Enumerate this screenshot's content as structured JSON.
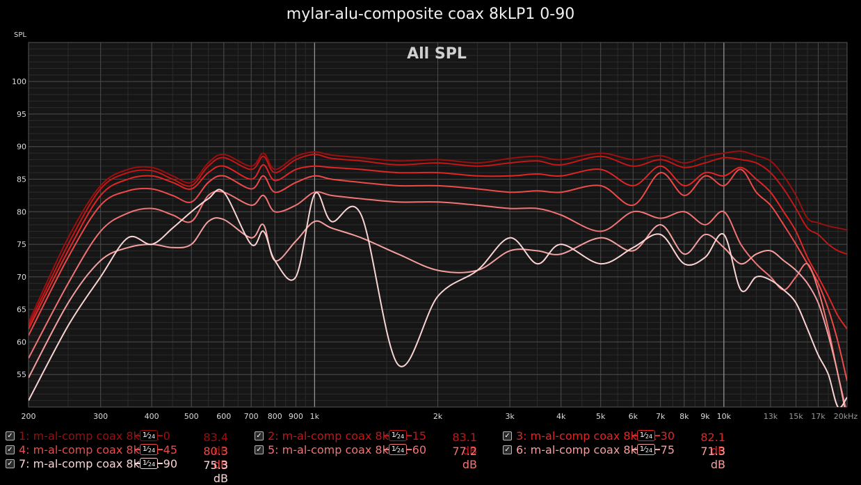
{
  "header": {
    "title": "mylar-alu-composite coax 8kLP1 0-90"
  },
  "chart_data": {
    "type": "line",
    "title": "All SPL",
    "xlabel": "",
    "ylabel": "SPL",
    "x_scale": "log",
    "xlim": [
      200,
      20000
    ],
    "ylim": [
      50,
      106
    ],
    "grid": true,
    "x_tick_labels": [
      {
        "v": 200,
        "t": "200"
      },
      {
        "v": 300,
        "t": "300"
      },
      {
        "v": 400,
        "t": "400"
      },
      {
        "v": 500,
        "t": "500"
      },
      {
        "v": 600,
        "t": "600"
      },
      {
        "v": 700,
        "t": "700"
      },
      {
        "v": 800,
        "t": "800"
      },
      {
        "v": 900,
        "t": "900"
      },
      {
        "v": 1000,
        "t": "1k"
      },
      {
        "v": 2000,
        "t": "2k"
      },
      {
        "v": 3000,
        "t": "3k"
      },
      {
        "v": 4000,
        "t": "4k"
      },
      {
        "v": 5000,
        "t": "5k"
      },
      {
        "v": 6000,
        "t": "6k"
      },
      {
        "v": 7000,
        "t": "7k"
      },
      {
        "v": 8000,
        "t": "8k"
      },
      {
        "v": 9000,
        "t": "9k"
      },
      {
        "v": 10000,
        "t": "10k"
      },
      {
        "v": 13000,
        "t": "13k"
      },
      {
        "v": 15000,
        "t": "15k"
      },
      {
        "v": 17000,
        "t": "17k"
      },
      {
        "v": 20000,
        "t": "20kHz"
      }
    ],
    "y_ticks": [
      55,
      60,
      65,
      70,
      75,
      80,
      85,
      90,
      95,
      100
    ],
    "x": [
      200,
      250,
      300,
      350,
      400,
      450,
      500,
      550,
      600,
      700,
      750,
      800,
      900,
      1000,
      1100,
      1300,
      1600,
      2000,
      2500,
      3000,
      3500,
      4000,
      5000,
      6000,
      7000,
      8000,
      9000,
      10000,
      11000,
      12000,
      13000,
      14000,
      15000,
      16000,
      17000,
      18000,
      19000,
      20000
    ],
    "series": [
      {
        "name": "1: m-al-comp coax 8kLP1 0",
        "color": "#9b0f0f",
        "values": [
          63,
          76,
          84,
          86.5,
          86.8,
          85.5,
          84.5,
          87.5,
          88.8,
          87,
          89,
          86.5,
          88.5,
          89.2,
          88.7,
          88.3,
          87.8,
          88,
          87.5,
          88.2,
          88.5,
          88,
          89,
          88,
          88.6,
          87.5,
          88.5,
          89,
          89.3,
          88.6,
          87.8,
          85.5,
          82.5,
          79,
          78.3,
          77.8,
          77.5,
          77.2
        ]
      },
      {
        "name": "2: m-al-comp coax 8kLP1 15",
        "color": "#c41616",
        "values": [
          62.5,
          75,
          83.5,
          86,
          86.3,
          85,
          84,
          87,
          88.3,
          86.5,
          88.5,
          86,
          88,
          88.8,
          88.2,
          87.8,
          87.2,
          87.5,
          87,
          87.5,
          87.8,
          87.2,
          88.5,
          87,
          88,
          86.8,
          87.5,
          88.3,
          88,
          87.5,
          86,
          83.5,
          80.5,
          77.5,
          76.5,
          75,
          74,
          73.5
        ]
      },
      {
        "name": "3: m-al-comp coax 8kLP1 30",
        "color": "#e22525",
        "values": [
          62,
          74,
          82.5,
          85,
          85.5,
          84.5,
          83.5,
          86,
          87,
          85,
          87.2,
          84.8,
          86.5,
          87,
          86.8,
          86.5,
          86,
          86,
          85.5,
          85.5,
          85.8,
          85.5,
          86.5,
          84,
          87,
          84,
          86,
          85.5,
          86.8,
          85,
          83,
          80,
          77,
          73,
          70,
          67,
          64,
          62
        ]
      },
      {
        "name": "4: m-al-comp coax 8kLP1 45",
        "color": "#ee4a4a",
        "values": [
          61,
          73,
          81,
          83.2,
          83.5,
          82.5,
          81.5,
          84.5,
          85.5,
          83.5,
          85.5,
          83,
          84.5,
          85.5,
          85,
          84.5,
          84,
          84,
          83.5,
          83,
          83.2,
          83,
          84,
          81,
          86,
          82.5,
          85.5,
          84,
          86.5,
          83,
          81,
          78,
          75,
          72,
          69,
          65,
          60,
          54
        ]
      },
      {
        "name": "5: m-al-comp coax 8kLP1 60",
        "color": "#f27474",
        "values": [
          57.5,
          69,
          77,
          79.8,
          80.5,
          79.5,
          78.5,
          82.5,
          83,
          81,
          82.5,
          80,
          81,
          83,
          82.5,
          82,
          81.5,
          81.5,
          81,
          80.5,
          80.5,
          79.5,
          77,
          80,
          79,
          80,
          78,
          80,
          75,
          72,
          70,
          68,
          70,
          72,
          68,
          62,
          55,
          49
        ]
      },
      {
        "name": "6: m-al-comp coax 8kLP1 75",
        "color": "#f5a0a0",
        "values": [
          54.5,
          66,
          72.5,
          74.5,
          75,
          74.5,
          75,
          78.5,
          78.8,
          76,
          78,
          72.5,
          75.5,
          78.5,
          77.5,
          76,
          73.5,
          71,
          71,
          74,
          74,
          73.5,
          76,
          74,
          78,
          73.5,
          76.5,
          74.5,
          72,
          73.5,
          74,
          72.5,
          71,
          69,
          66,
          61,
          55,
          48
        ]
      },
      {
        "name": "7: m-al-comp coax 8kLP1 90",
        "color": "#fbd4d4",
        "values": [
          51,
          62.5,
          70,
          76,
          75,
          77.5,
          80,
          82,
          83,
          75,
          77,
          72.5,
          70,
          82.7,
          78.5,
          79.5,
          56.5,
          67,
          71,
          76,
          72,
          75,
          72,
          74.5,
          76.5,
          72,
          73,
          76.5,
          68,
          70,
          69.5,
          68,
          66,
          62,
          58,
          55,
          50,
          51.5
        ]
      }
    ]
  },
  "legend": [
    {
      "label": "1: m-al-comp coax 8kLP1 0",
      "smoothing_num": "1",
      "smoothing_den": "24",
      "db": "83.4 dB",
      "color": "#9b0f0f",
      "checked": true
    },
    {
      "label": "2: m-al-comp coax 8kLP1 15",
      "smoothing_num": "1",
      "smoothing_den": "24",
      "db": "83.1 dB",
      "color": "#c41616",
      "checked": true
    },
    {
      "label": "3: m-al-comp coax 8kLP1 30",
      "smoothing_num": "1",
      "smoothing_den": "24",
      "db": "82.1 dB",
      "color": "#e22525",
      "checked": true
    },
    {
      "label": "4: m-al-comp coax 8kLP1 45",
      "smoothing_num": "1",
      "smoothing_den": "24",
      "db": "80.3 dB",
      "color": "#ee4a4a",
      "checked": true
    },
    {
      "label": "5: m-al-comp coax 8kLP1 60",
      "smoothing_num": "1",
      "smoothing_den": "24",
      "db": "77.2 dB",
      "color": "#f27474",
      "checked": true
    },
    {
      "label": "6: m-al-comp coax 8kLP1 75",
      "smoothing_num": "1",
      "smoothing_den": "24",
      "db": "71.3 dB",
      "color": "#f5a0a0",
      "checked": true
    },
    {
      "label": "7: m-al-comp coax 8kLP1 90",
      "smoothing_num": "1",
      "smoothing_den": "24",
      "db": "75.3 dB",
      "color": "#fbd4d4",
      "checked": true
    }
  ]
}
